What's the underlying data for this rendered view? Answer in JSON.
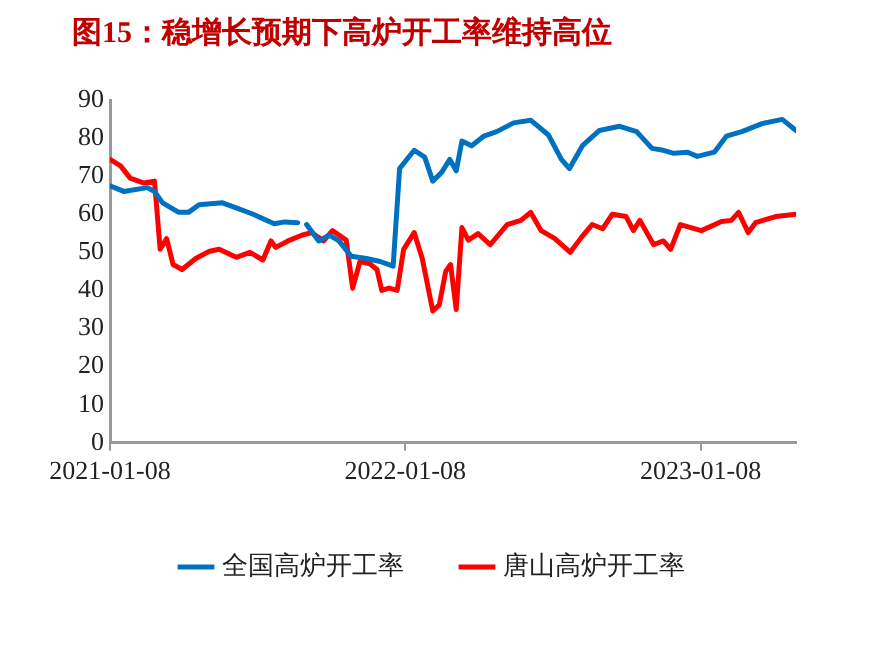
{
  "chart_data": {
    "type": "line",
    "title": "图15：稳增长预期下高炉开工率维持高位",
    "xlim": [
      "2021-01-08",
      "2023-05-06"
    ],
    "xticks": [
      "2021-01-08",
      "2022-01-08",
      "2023-01-08"
    ],
    "ylim": [
      0,
      90
    ],
    "yticks": [
      0,
      10,
      20,
      30,
      40,
      50,
      60,
      70,
      80,
      90
    ],
    "grid": false,
    "legend": "bottom",
    "marker": "none",
    "line_style": "solid",
    "series": [
      {
        "name": "全国高炉开工率",
        "color": "#0070c0",
        "x": [
          "2021-01-08",
          "2021-01-25",
          "2021-02-23",
          "2021-03-04",
          "2021-03-14",
          "2021-04-03",
          "2021-04-15",
          "2021-04-28",
          "2021-05-27",
          "2021-06-13",
          "2021-07-04",
          "2021-07-30",
          "2021-08-12",
          "2021-08-28",
          "2021-09-03",
          "2021-09-08",
          "2021-09-23",
          "2021-10-06",
          "2021-10-18",
          "2021-11-02",
          "2021-11-21",
          "2021-12-08",
          "2021-12-24",
          "2022-01-01",
          "2022-01-19",
          "2022-02-01",
          "2022-02-11",
          "2022-02-22",
          "2022-03-04",
          "2022-03-12",
          "2022-03-19",
          "2022-03-31",
          "2022-04-15",
          "2022-05-01",
          "2022-05-22",
          "2022-06-12",
          "2022-07-04",
          "2022-07-20",
          "2022-07-30",
          "2022-08-15",
          "2022-09-05",
          "2022-09-30",
          "2022-10-21",
          "2022-11-09",
          "2022-11-23",
          "2022-12-06",
          "2022-12-23",
          "2023-01-04",
          "2023-01-25",
          "2023-02-09",
          "2023-02-28",
          "2023-03-25",
          "2023-04-19",
          "2023-05-06"
        ],
        "values": [
          67.5,
          66,
          67,
          66,
          63,
          60.5,
          60.5,
          62.5,
          63,
          61.7,
          60,
          57.5,
          58,
          57.8,
          null,
          57.3,
          53,
          54.5,
          53,
          49,
          48.4,
          47.6,
          46.4,
          72,
          76.8,
          75,
          68.7,
          71,
          74.4,
          71.4,
          79.2,
          78,
          80.5,
          81.7,
          84,
          84.7,
          80.8,
          74.4,
          72,
          78,
          82,
          83.1,
          81.7,
          77.3,
          76.8,
          76,
          76.3,
          75.2,
          76.3,
          80.5,
          81.7,
          83.8,
          84.9,
          82
        ]
      },
      {
        "name": "唐山高炉开工率",
        "color": "#ff0000",
        "x": [
          "2021-01-08",
          "2021-01-21",
          "2021-02-02",
          "2021-02-19",
          "2021-03-04",
          "2021-03-11",
          "2021-03-19",
          "2021-03-27",
          "2021-04-07",
          "2021-04-24",
          "2021-05-11",
          "2021-05-23",
          "2021-06-13",
          "2021-06-30",
          "2021-07-16",
          "2021-07-26",
          "2021-08-01",
          "2021-08-16",
          "2021-09-02",
          "2021-09-14",
          "2021-09-29",
          "2021-10-10",
          "2021-10-27",
          "2021-11-04",
          "2021-11-13",
          "2021-11-25",
          "2021-12-04",
          "2021-12-10",
          "2021-12-19",
          "2021-12-29",
          "2022-01-06",
          "2022-01-19",
          "2022-01-29",
          "2022-02-11",
          "2022-02-19",
          "2022-02-27",
          "2022-03-05",
          "2022-03-12",
          "2022-03-19",
          "2022-03-27",
          "2022-04-08",
          "2022-04-23",
          "2022-05-14",
          "2022-05-31",
          "2022-06-12",
          "2022-06-25",
          "2022-07-12",
          "2022-07-31",
          "2022-08-14",
          "2022-08-27",
          "2022-09-09",
          "2022-09-21",
          "2022-10-08",
          "2022-10-17",
          "2022-10-25",
          "2022-11-11",
          "2022-11-23",
          "2022-12-02",
          "2022-12-14",
          "2023-01-09",
          "2023-02-03",
          "2023-02-15",
          "2023-02-24",
          "2023-03-08",
          "2023-03-17",
          "2023-04-11",
          "2023-05-06"
        ],
        "values": [
          74.4,
          72.7,
          69.5,
          68.2,
          68.7,
          50.8,
          53.6,
          46.8,
          45.5,
          48.4,
          50.3,
          50.8,
          48.7,
          50,
          48,
          53,
          51.3,
          53,
          54.5,
          55.2,
          53,
          55.7,
          53.2,
          40.6,
          47.6,
          47,
          45.5,
          40,
          40.6,
          40,
          50.8,
          55.2,
          48.4,
          34.6,
          36.2,
          45,
          46.8,
          35,
          56.5,
          53.2,
          54.9,
          52,
          57.3,
          58.4,
          60.5,
          55.7,
          53.6,
          50,
          54,
          57.3,
          56.2,
          60,
          59.4,
          55.7,
          58.4,
          52,
          53,
          50.8,
          57.3,
          55.7,
          58.1,
          58.4,
          60.5,
          55.2,
          57.8,
          59.4,
          60
        ]
      }
    ]
  }
}
